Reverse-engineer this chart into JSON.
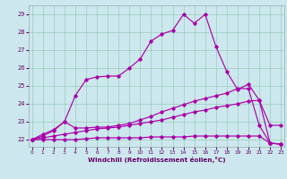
{
  "bg_color": "#cce8ee",
  "line_color": "#aa00aa",
  "grid_color": "#99ccbb",
  "xlabel": "Windchill (Refroidissement éolien,°C)",
  "x_ticks": [
    0,
    1,
    2,
    3,
    4,
    5,
    6,
    7,
    8,
    9,
    10,
    11,
    12,
    13,
    14,
    15,
    16,
    17,
    18,
    19,
    20,
    21,
    22,
    23
  ],
  "ylim": [
    21.6,
    29.5
  ],
  "xlim": [
    -0.3,
    23.3
  ],
  "yticks": [
    22,
    23,
    24,
    25,
    26,
    27,
    28,
    29
  ],
  "series": {
    "line1": {
      "x": [
        0,
        1,
        2,
        3,
        4,
        5,
        6,
        7,
        8,
        9,
        10,
        11,
        12,
        13,
        14,
        15,
        16,
        17,
        18,
        19,
        20,
        21,
        22,
        23
      ],
      "y": [
        22.0,
        22.3,
        22.55,
        23.0,
        24.45,
        25.35,
        25.5,
        25.55,
        25.55,
        26.0,
        26.5,
        27.5,
        27.9,
        28.1,
        29.0,
        28.5,
        29.0,
        27.2,
        25.8,
        24.8,
        25.1,
        24.2,
        22.8,
        22.8
      ]
    },
    "line2": {
      "x": [
        0,
        1,
        2,
        3,
        4,
        5,
        6,
        7,
        8,
        9,
        10,
        11,
        12,
        13,
        14,
        15,
        16,
        17,
        18,
        19,
        20,
        21,
        22,
        23
      ],
      "y": [
        22.0,
        22.2,
        22.5,
        23.0,
        22.65,
        22.65,
        22.7,
        22.7,
        22.8,
        22.9,
        23.1,
        23.3,
        23.55,
        23.75,
        23.95,
        24.15,
        24.3,
        24.45,
        24.6,
        24.85,
        24.85,
        22.8,
        21.8,
        21.75
      ]
    },
    "line3": {
      "x": [
        0,
        1,
        2,
        3,
        4,
        5,
        6,
        7,
        8,
        9,
        10,
        11,
        12,
        13,
        14,
        15,
        16,
        17,
        18,
        19,
        20,
        21,
        22,
        23
      ],
      "y": [
        22.0,
        22.1,
        22.2,
        22.3,
        22.4,
        22.5,
        22.6,
        22.65,
        22.7,
        22.8,
        22.9,
        23.0,
        23.1,
        23.25,
        23.4,
        23.55,
        23.65,
        23.8,
        23.9,
        24.0,
        24.15,
        24.2,
        21.8,
        21.75
      ]
    },
    "line4": {
      "x": [
        0,
        1,
        2,
        3,
        4,
        5,
        6,
        7,
        8,
        9,
        10,
        11,
        12,
        13,
        14,
        15,
        16,
        17,
        18,
        19,
        20,
        21,
        22,
        23
      ],
      "y": [
        22.0,
        22.0,
        22.0,
        22.0,
        22.0,
        22.05,
        22.1,
        22.1,
        22.1,
        22.1,
        22.1,
        22.15,
        22.15,
        22.15,
        22.15,
        22.2,
        22.2,
        22.2,
        22.2,
        22.2,
        22.2,
        22.2,
        21.8,
        21.75
      ]
    }
  }
}
